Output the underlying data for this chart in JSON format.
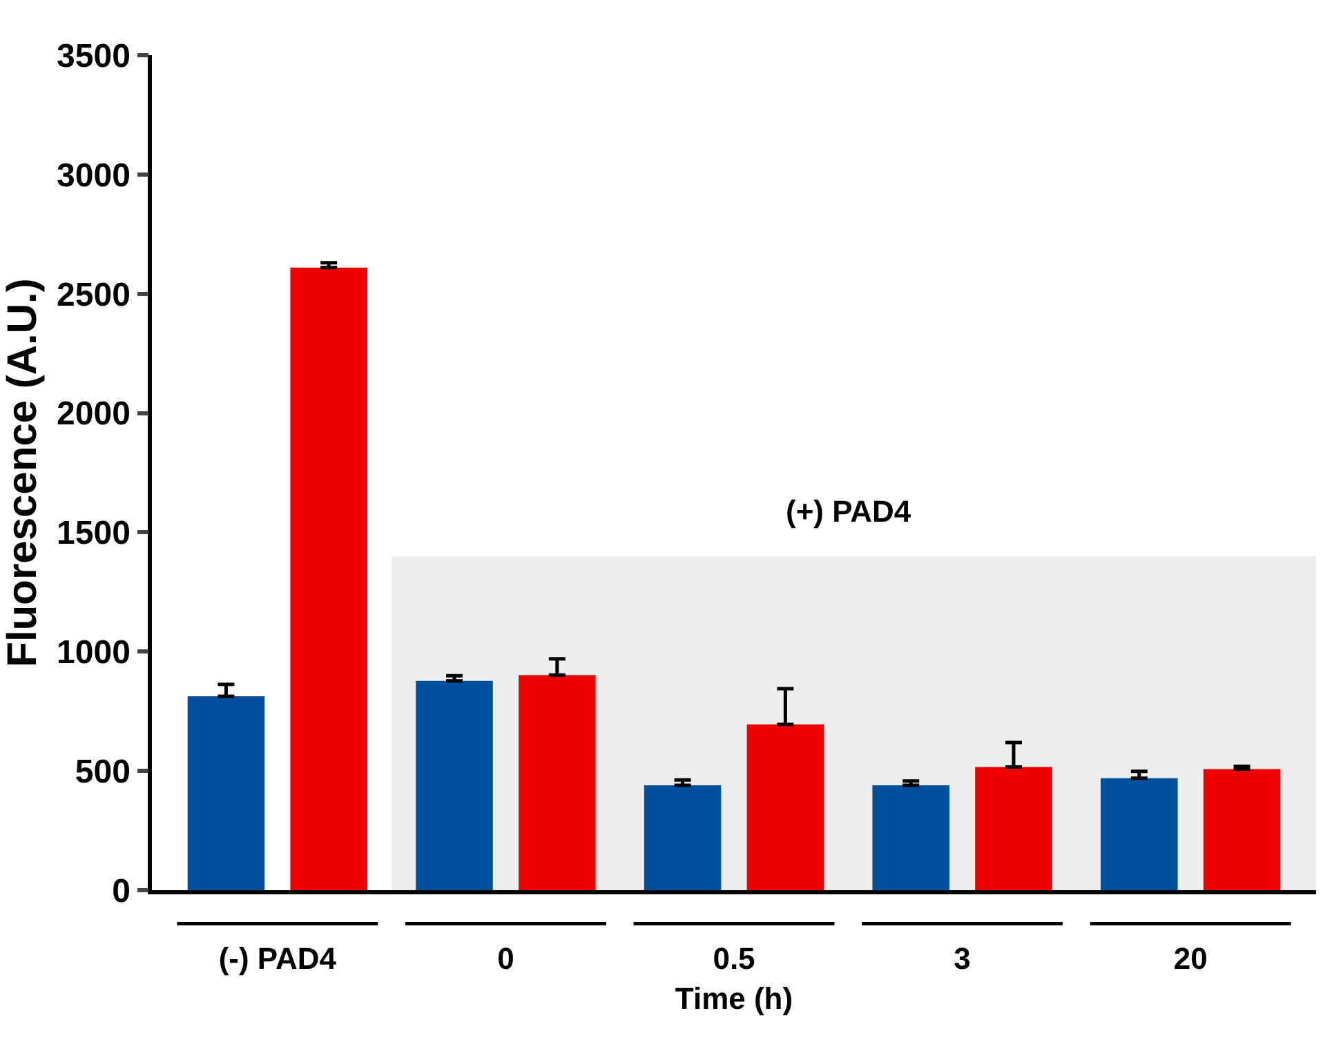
{
  "chart_data": {
    "type": "bar",
    "xlabel": "Time (h)",
    "ylabel": "Fluorescence (A.U.)",
    "categories": [
      "(-) PAD4",
      "0",
      "0.5",
      "3",
      "20"
    ],
    "series": [
      {
        "color": "#0050a0",
        "values": [
          813,
          877,
          440,
          440,
          469
        ],
        "errors": [
          [
            813,
            863
          ],
          [
            877,
            899
          ],
          [
            440,
            462
          ],
          [
            440,
            458
          ],
          [
            469,
            498
          ]
        ]
      },
      {
        "color": "#ee0000",
        "values": [
          2610,
          902,
          695,
          516,
          508
        ],
        "errors": [
          [
            2610,
            2630
          ],
          [
            902,
            970
          ],
          [
            695,
            845
          ],
          [
            516,
            619
          ],
          [
            508,
            519
          ]
        ]
      }
    ],
    "ylim": [
      0,
      3500
    ],
    "yticks": [
      0,
      500,
      1000,
      1500,
      2000,
      2500,
      3000,
      3500
    ],
    "bands": [
      {
        "axis": "x",
        "from": "0",
        "to": "20",
        "label": "(+) PAD4",
        "color": "#eeeeee"
      }
    ],
    "grid": false
  }
}
